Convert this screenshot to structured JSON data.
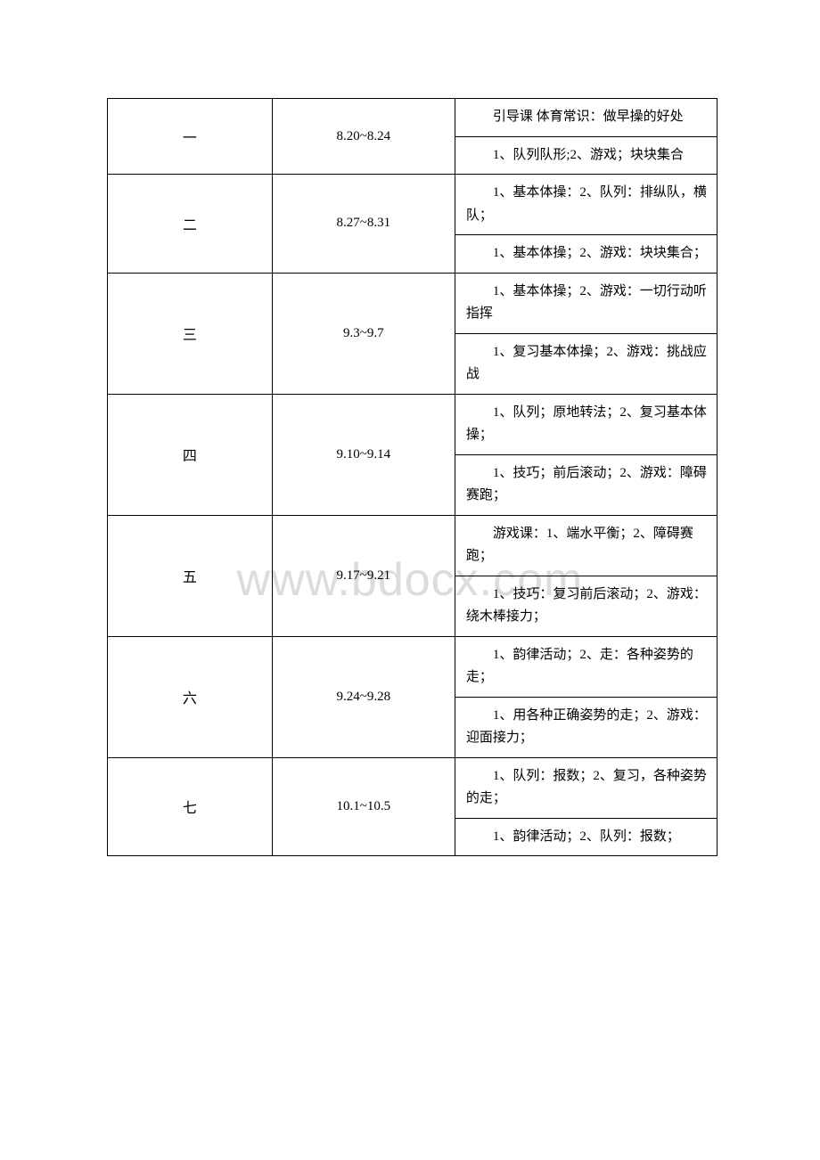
{
  "watermark": "www.bdocx.com",
  "rows": [
    {
      "week": "一",
      "date": "8.20~8.24",
      "contents": [
        "引导课 体育常识：做早操的好处",
        "1、队列队形;2、游戏；块块集合"
      ]
    },
    {
      "week": "二",
      "date": "8.27~8.31",
      "contents": [
        "1、基本体操：2、队列：排纵队，横队；",
        "1、基本体操；2、游戏：块块集合；"
      ]
    },
    {
      "week": "三",
      "date": "9.3~9.7",
      "contents": [
        "1、基本体操；2、游戏：一切行动听指挥",
        "1、复习基本体操；2、游戏：挑战应战"
      ]
    },
    {
      "week": "四",
      "date": "9.10~9.14",
      "contents": [
        "1、队列；原地转法；2、复习基本体操；",
        "1、技巧；前后滚动；2、游戏：障碍赛跑；"
      ]
    },
    {
      "week": "五",
      "date": "9.17~9.21",
      "contents": [
        "游戏课：1、端水平衡；2、障碍赛跑；",
        "1、技巧：复习前后滚动；2、游戏：绕木棒接力；"
      ]
    },
    {
      "week": "六",
      "date": "9.24~9.28",
      "contents": [
        "1、韵律活动；2、走：各种姿势的走；",
        "1、用各种正确姿势的走；2、游戏：迎面接力；"
      ]
    },
    {
      "week": "七",
      "date": "10.1~10.5",
      "contents": [
        "1、队列：报数；2、复习，各种姿势的走；",
        "1、韵律活动；2、队列：报数；"
      ]
    }
  ]
}
